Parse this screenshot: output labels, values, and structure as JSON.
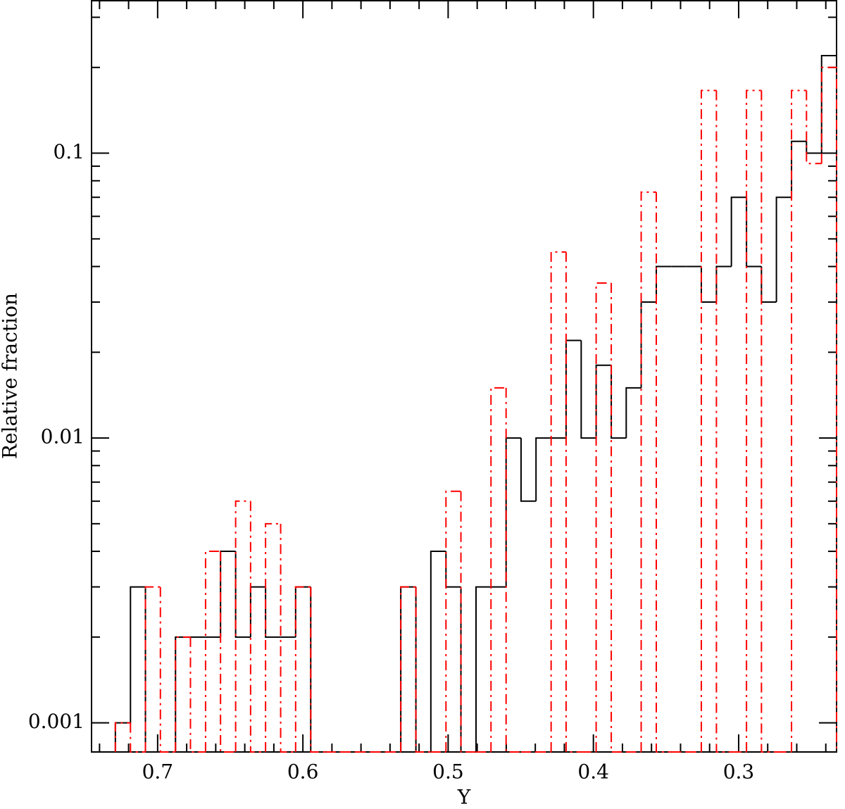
{
  "chart_data": {
    "type": "histogram",
    "x_label": "Y",
    "y_label": "Relative fraction",
    "bins": [
      0.7291,
      0.7187,
      0.7084,
      0.6981,
      0.6877,
      0.6774,
      0.667,
      0.6567,
      0.6463,
      0.636,
      0.6257,
      0.6153,
      0.605,
      0.5946,
      0.5843,
      0.5739,
      0.5636,
      0.5532,
      0.5429,
      0.5326,
      0.5222,
      0.5119,
      0.5015,
      0.4912,
      0.4808,
      0.4705,
      0.4601,
      0.4498,
      0.4395,
      0.4291,
      0.4188,
      0.4084,
      0.3981,
      0.3877,
      0.3774,
      0.3671,
      0.3567,
      0.3464,
      0.336,
      0.3257,
      0.3153,
      0.305,
      0.2946,
      0.2843,
      0.274,
      0.2636,
      0.2533,
      0.2429,
      0.2326
    ],
    "series": [
      {
        "color": "#000000",
        "line_style": "solid",
        "values": [
          0.001,
          0.003,
          0,
          0,
          0.002,
          0.002,
          0.002,
          0.004,
          0.002,
          0.003,
          0.002,
          0.002,
          0.003,
          0,
          0,
          0,
          0,
          0,
          0,
          0.003,
          0,
          0.004,
          0.003,
          0,
          0.003,
          0.003,
          0.01,
          0.006,
          0.01,
          0.01,
          0.022,
          0.01,
          0.018,
          0.01,
          0.015,
          0.03,
          0.04,
          0.04,
          0.04,
          0.03,
          0.04,
          0.07,
          0.04,
          0.03,
          0.07,
          0.11,
          0.1,
          0.22
        ]
      },
      {
        "color": "#ff0000",
        "line_style": "dashdot",
        "values": [
          0.001,
          0,
          0.003,
          0,
          0.002,
          0,
          0.004,
          0,
          0.006,
          0,
          0.005,
          0,
          0.003,
          0,
          0,
          0,
          0,
          0,
          0,
          0.003,
          0,
          0,
          0.0065,
          0,
          0,
          0.015,
          0,
          0,
          0,
          0.045,
          0,
          0,
          0.035,
          0,
          0,
          0.073,
          0,
          0,
          0,
          0.166,
          0,
          0,
          0.166,
          0,
          0,
          0.166,
          0.092,
          0.2
        ]
      }
    ],
    "xlim": [
      0.7455,
      0.2326
    ],
    "xticks": [
      0.7,
      0.6,
      0.5,
      0.4,
      0.3
    ],
    "xminorticks": [
      0.74,
      0.72,
      0.68,
      0.66,
      0.64,
      0.62,
      0.58,
      0.56,
      0.54,
      0.52,
      0.48,
      0.46,
      0.44,
      0.42,
      0.38,
      0.36,
      0.34,
      0.32,
      0.28,
      0.26,
      0.24
    ],
    "ylim": [
      0.00079,
      0.343
    ],
    "yscale": "log",
    "yticks": [
      0.001,
      0.01,
      0.1
    ],
    "yminorticks": [
      0.002,
      0.003,
      0.004,
      0.005,
      0.006,
      0.007,
      0.008,
      0.009,
      0.02,
      0.03,
      0.04,
      0.05,
      0.06,
      0.07,
      0.08,
      0.09,
      0.2,
      0.3
    ]
  }
}
